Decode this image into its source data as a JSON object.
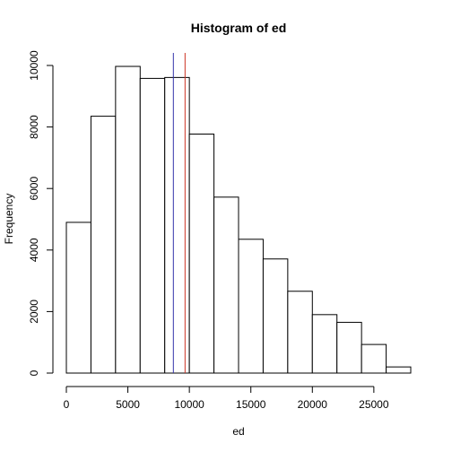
{
  "chart_data": {
    "type": "bar",
    "title": "Histogram of ed",
    "xlabel": "ed",
    "ylabel": "Frequency",
    "xlim": [
      0,
      28000
    ],
    "ylim": [
      0,
      10000
    ],
    "bin_edges": [
      0,
      2000,
      4000,
      6000,
      8000,
      10000,
      12000,
      14000,
      16000,
      18000,
      20000,
      22000,
      24000,
      26000,
      28000
    ],
    "values": [
      4900,
      8350,
      9970,
      9580,
      9610,
      7770,
      5720,
      4350,
      3710,
      2660,
      1900,
      1650,
      930,
      200
    ],
    "x_ticks": [
      0,
      5000,
      10000,
      15000,
      20000,
      25000
    ],
    "y_ticks": [
      0,
      2000,
      4000,
      6000,
      8000,
      10000
    ],
    "x_tick_labels": [
      "0",
      "5000",
      "10000",
      "15000",
      "20000",
      "25000"
    ],
    "y_tick_labels": [
      "0",
      "2000",
      "4000",
      "6000",
      "8000",
      "10000"
    ],
    "vlines": [
      {
        "x": 8700,
        "color": "#3333aa"
      },
      {
        "x": 9650,
        "color": "#cc3322"
      }
    ],
    "bar_fill": "#ffffff",
    "bar_stroke": "#000000",
    "grid": false,
    "legend": "none"
  }
}
